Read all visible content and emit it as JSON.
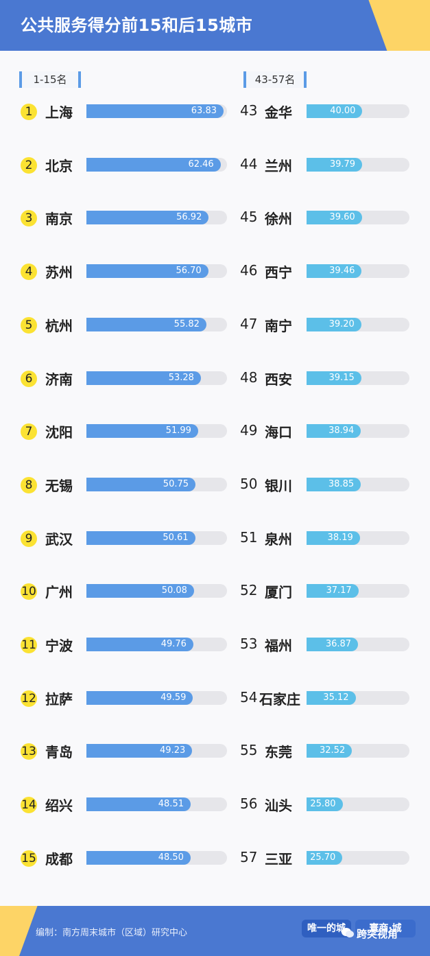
{
  "header": {
    "title": "公共服务得分前15和后15城市"
  },
  "labels": {
    "left": "1-15名",
    "right": "43-57名"
  },
  "chart_data": {
    "type": "bar",
    "title": "公共服务得分前15和后15城市",
    "xlim": [
      0,
      63.83
    ],
    "groups": [
      {
        "name": "1-15名",
        "ranks": [
          "1",
          "2",
          "3",
          "4",
          "5",
          "6",
          "7",
          "8",
          "9",
          "10",
          "11",
          "12",
          "13",
          "14",
          "15"
        ],
        "categories": [
          "上海",
          "北京",
          "南京",
          "苏州",
          "杭州",
          "济南",
          "沈阳",
          "无锡",
          "武汉",
          "广州",
          "宁波",
          "拉萨",
          "青岛",
          "绍兴",
          "成都"
        ],
        "values": [
          63.83,
          62.46,
          56.92,
          56.7,
          55.82,
          53.28,
          51.99,
          50.75,
          50.61,
          50.08,
          49.76,
          49.59,
          49.23,
          48.51,
          48.5
        ],
        "labels": [
          "63.83",
          "62.46",
          "56.92",
          "56.70",
          "55.82",
          "53.28",
          "51.99",
          "50.75",
          "50.61",
          "50.08",
          "49.76",
          "49.59",
          "49.23",
          "48.51",
          "48.50"
        ]
      },
      {
        "name": "43-57名",
        "ranks": [
          "43",
          "44",
          "45",
          "46",
          "47",
          "48",
          "49",
          "50",
          "51",
          "52",
          "53",
          "54",
          "55",
          "56",
          "57"
        ],
        "categories": [
          "金华",
          "兰州",
          "徐州",
          "西宁",
          "南宁",
          "西安",
          "海口",
          "银川",
          "泉州",
          "厦门",
          "福州",
          "石家庄",
          "东莞",
          "汕头",
          "三亚"
        ],
        "values": [
          40.0,
          39.79,
          39.6,
          39.46,
          39.2,
          39.15,
          38.94,
          38.85,
          38.19,
          37.17,
          36.87,
          35.12,
          32.52,
          25.8,
          25.7
        ],
        "labels": [
          "40.00",
          "39.79",
          "39.60",
          "39.46",
          "39.20",
          "39.15",
          "38.94",
          "38.85",
          "38.19",
          "37.17",
          "36.87",
          "35.12",
          "32.52",
          "25.80",
          "25.70"
        ]
      }
    ]
  },
  "colors": {
    "header": "#4a78d1",
    "accent": "#fdd466",
    "bar_left": "#5b9be6",
    "bar_right": "#5cbfe8",
    "track": "#e6e6ea",
    "rank_circle": "#fbe233"
  },
  "footer": {
    "credit": "编制：南方周末城市（区域）研究中心",
    "logo1": "唯一的城",
    "logo2": "寰商·城"
  },
  "watermark": {
    "text": "跨突视角",
    "icon": "wechat-icon"
  }
}
